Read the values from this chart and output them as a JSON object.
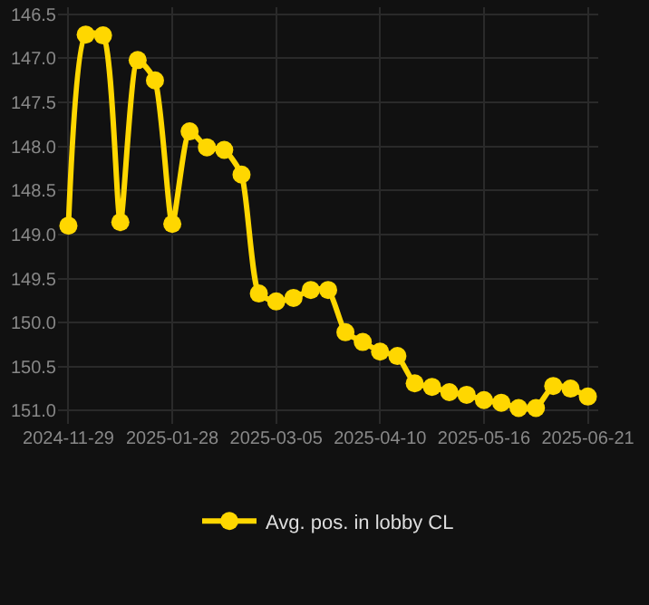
{
  "chart_data": {
    "type": "line",
    "categories": [
      "2024-11-29",
      null,
      null,
      null,
      null,
      null,
      "2025-01-28",
      null,
      null,
      null,
      null,
      null,
      "2025-03-05",
      null,
      null,
      null,
      null,
      null,
      "2025-04-10",
      null,
      null,
      null,
      null,
      null,
      "2025-05-16",
      null,
      null,
      null,
      null,
      null,
      "2025-06-21"
    ],
    "series": [
      {
        "name": "Avg. pos. in lobby CL",
        "color": "#ffd700",
        "values": [
          148.9,
          146.73,
          146.74,
          148.86,
          147.02,
          147.25,
          148.88,
          147.83,
          148.01,
          148.04,
          148.32,
          149.67,
          149.76,
          149.72,
          149.63,
          149.63,
          150.11,
          150.22,
          150.33,
          150.38,
          150.69,
          150.73,
          150.79,
          150.82,
          150.88,
          150.91,
          150.97,
          150.97,
          150.72,
          150.75,
          150.84
        ]
      }
    ],
    "ylim": [
      151.15,
      146.42
    ],
    "yticks": [
      146.5,
      {
        "value": 147,
        "label": "147.0"
      },
      147.5,
      {
        "value": 148,
        "label": "148.0"
      },
      148.5,
      {
        "value": 149,
        "label": "149.0"
      },
      149.5,
      {
        "value": 150,
        "label": "150.0"
      },
      150.5,
      {
        "value": 151,
        "label": "151.0"
      }
    ],
    "grid": true,
    "legend": "bottom",
    "marker": "circle",
    "line_style": "solid"
  }
}
